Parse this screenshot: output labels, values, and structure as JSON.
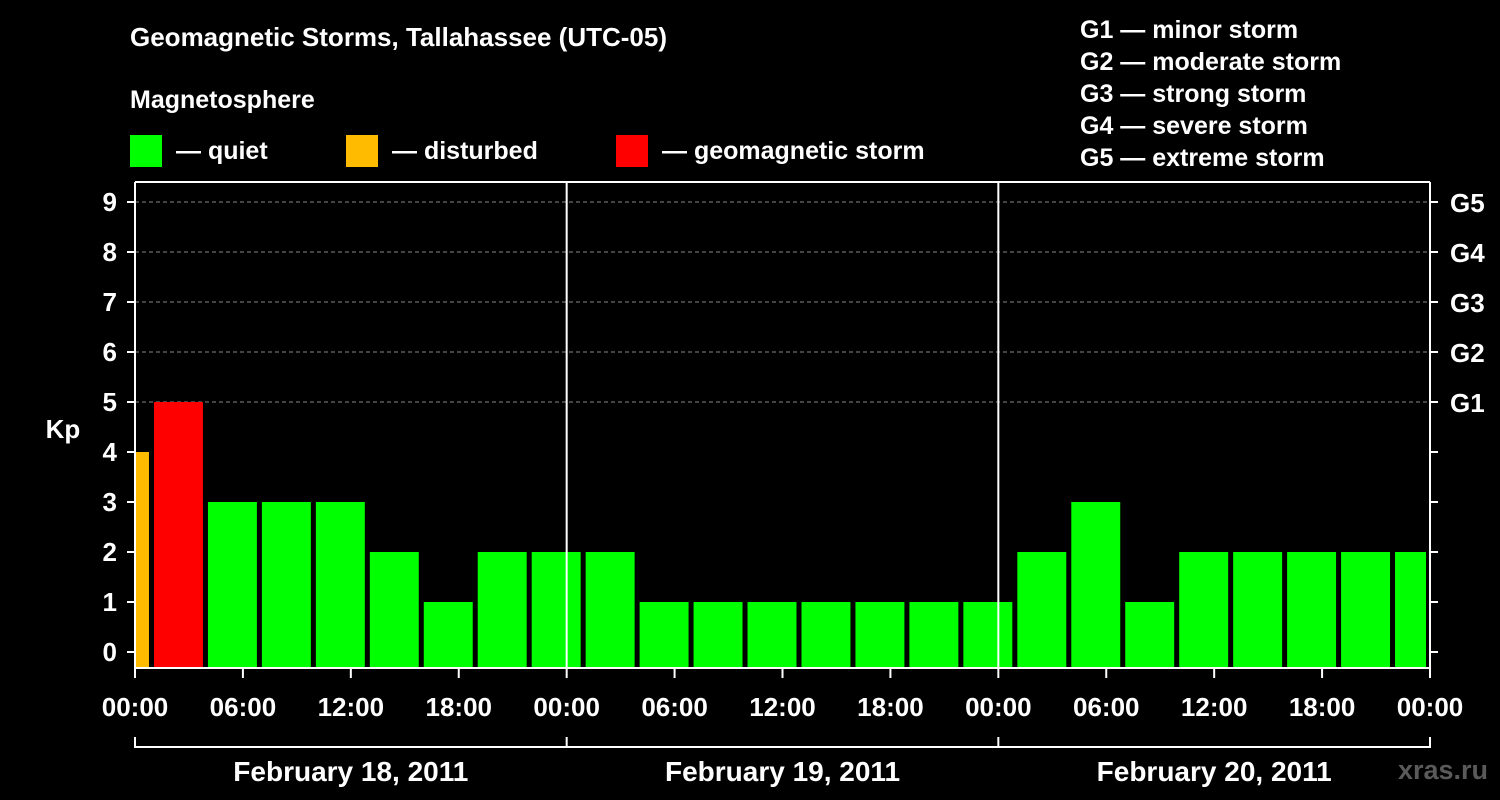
{
  "title": "Geomagnetic Storms, Tallahassee (UTC-05)",
  "subtitle": "Magnetosphere",
  "legend": [
    {
      "label": "— quiet",
      "color": "#00ff00"
    },
    {
      "label": "— disturbed",
      "color": "#ffbb00"
    },
    {
      "label": "— geomagnetic storm",
      "color": "#ff0000"
    }
  ],
  "storm_scale": [
    {
      "label": "G1 — minor storm"
    },
    {
      "label": "G2 — moderate storm"
    },
    {
      "label": "G3 — strong storm"
    },
    {
      "label": "G4 — severe storm"
    },
    {
      "label": "G5 — extreme storm"
    }
  ],
  "watermark": "xras.ru",
  "chart_data": {
    "type": "bar",
    "ylabel": "Kp",
    "ylim": [
      0,
      9
    ],
    "yticks": [
      "0",
      "1",
      "2",
      "3",
      "4",
      "5",
      "6",
      "7",
      "8",
      "9"
    ],
    "right_ticks": [
      {
        "kp": 5,
        "label": "G1"
      },
      {
        "kp": 6,
        "label": "G2"
      },
      {
        "kp": 7,
        "label": "G3"
      },
      {
        "kp": 8,
        "label": "G4"
      },
      {
        "kp": 9,
        "label": "G5"
      }
    ],
    "xtick_labels": [
      "00:00",
      "06:00",
      "12:00",
      "18:00",
      "00:00",
      "06:00",
      "12:00",
      "18:00",
      "00:00",
      "06:00",
      "12:00",
      "18:00",
      "00:00"
    ],
    "days": [
      "February 18, 2011",
      "February 19, 2011",
      "February 20, 2011"
    ],
    "grid": "dashed horizontal at Kp 5–9",
    "colors": {
      "quiet": "#00ff00",
      "disturbed": "#ffbb00",
      "storm": "#ff0000"
    },
    "bars": [
      {
        "start": "2011-02-18 00:00",
        "end": "2011-02-18 01:00",
        "kp": 4,
        "status": "disturbed"
      },
      {
        "start": "2011-02-18 01:00",
        "end": "2011-02-18 04:00",
        "kp": 5,
        "status": "storm"
      },
      {
        "start": "2011-02-18 04:00",
        "end": "2011-02-18 07:00",
        "kp": 3,
        "status": "quiet"
      },
      {
        "start": "2011-02-18 07:00",
        "end": "2011-02-18 10:00",
        "kp": 3,
        "status": "quiet"
      },
      {
        "start": "2011-02-18 10:00",
        "end": "2011-02-18 13:00",
        "kp": 3,
        "status": "quiet"
      },
      {
        "start": "2011-02-18 13:00",
        "end": "2011-02-18 16:00",
        "kp": 2,
        "status": "quiet"
      },
      {
        "start": "2011-02-18 16:00",
        "end": "2011-02-18 19:00",
        "kp": 1,
        "status": "quiet"
      },
      {
        "start": "2011-02-18 19:00",
        "end": "2011-02-18 22:00",
        "kp": 2,
        "status": "quiet"
      },
      {
        "start": "2011-02-18 22:00",
        "end": "2011-02-19 01:00",
        "kp": 2,
        "status": "quiet"
      },
      {
        "start": "2011-02-19 01:00",
        "end": "2011-02-19 04:00",
        "kp": 2,
        "status": "quiet"
      },
      {
        "start": "2011-02-19 04:00",
        "end": "2011-02-19 07:00",
        "kp": 1,
        "status": "quiet"
      },
      {
        "start": "2011-02-19 07:00",
        "end": "2011-02-19 10:00",
        "kp": 1,
        "status": "quiet"
      },
      {
        "start": "2011-02-19 10:00",
        "end": "2011-02-19 13:00",
        "kp": 1,
        "status": "quiet"
      },
      {
        "start": "2011-02-19 13:00",
        "end": "2011-02-19 16:00",
        "kp": 1,
        "status": "quiet"
      },
      {
        "start": "2011-02-19 16:00",
        "end": "2011-02-19 19:00",
        "kp": 1,
        "status": "quiet"
      },
      {
        "start": "2011-02-19 19:00",
        "end": "2011-02-19 22:00",
        "kp": 1,
        "status": "quiet"
      },
      {
        "start": "2011-02-19 22:00",
        "end": "2011-02-20 01:00",
        "kp": 1,
        "status": "quiet"
      },
      {
        "start": "2011-02-20 01:00",
        "end": "2011-02-20 04:00",
        "kp": 2,
        "status": "quiet"
      },
      {
        "start": "2011-02-20 04:00",
        "end": "2011-02-20 07:00",
        "kp": 3,
        "status": "quiet"
      },
      {
        "start": "2011-02-20 07:00",
        "end": "2011-02-20 10:00",
        "kp": 1,
        "status": "quiet"
      },
      {
        "start": "2011-02-20 10:00",
        "end": "2011-02-20 13:00",
        "kp": 2,
        "status": "quiet"
      },
      {
        "start": "2011-02-20 13:00",
        "end": "2011-02-20 16:00",
        "kp": 2,
        "status": "quiet"
      },
      {
        "start": "2011-02-20 16:00",
        "end": "2011-02-20 19:00",
        "kp": 2,
        "status": "quiet"
      },
      {
        "start": "2011-02-20 19:00",
        "end": "2011-02-20 22:00",
        "kp": 2,
        "status": "quiet"
      },
      {
        "start": "2011-02-20 22:00",
        "end": "2011-02-21 00:00",
        "kp": 2,
        "status": "quiet"
      }
    ]
  }
}
